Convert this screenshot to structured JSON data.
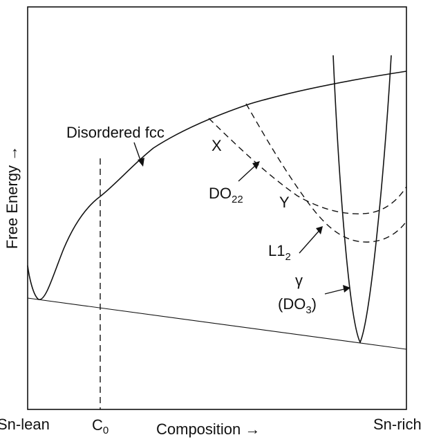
{
  "axes": {
    "y_label": "Free Energy →",
    "x_label": "Composition →",
    "x_left": "Sn-lean",
    "x_right": "Sn-rich",
    "c0_main": "C",
    "c0_sub": "0"
  },
  "labels": {
    "disordered": "Disordered fcc",
    "x_point": "X",
    "y_point": "Y",
    "do22_main": "DO",
    "do22_sub": "22",
    "l12_main": "L1",
    "l12_sub": "2",
    "gamma": "γ",
    "do3_open": "(DO",
    "do3_sub": "3",
    "do3_close": ")"
  }
}
